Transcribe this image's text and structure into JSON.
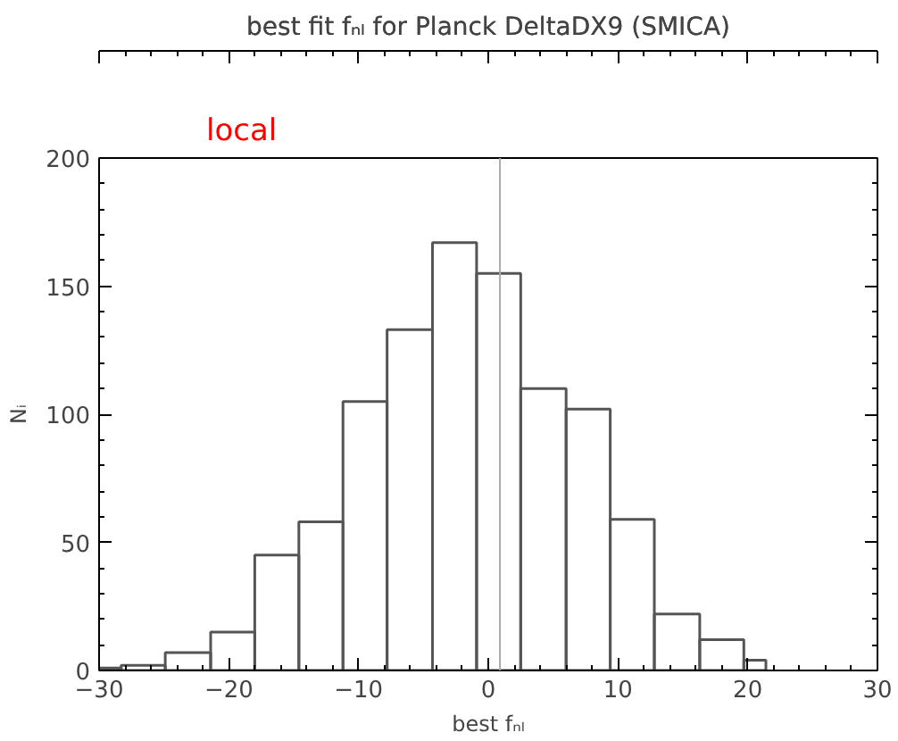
{
  "chart_data": {
    "type": "histogram",
    "title": "best fit fₙₗ for Planck DeltaDX9 (SMICA)",
    "xlabel": "best fₙₗ",
    "ylabel": "Nᵢ",
    "annotations": [
      "local"
    ],
    "bins": [
      -30,
      -28.3,
      -24.9,
      -21.4,
      -18.0,
      -14.6,
      -11.2,
      -7.8,
      -4.3,
      -0.9,
      2.5,
      6.0,
      9.4,
      12.8,
      16.3,
      19.7,
      21.4
    ],
    "values": [
      1,
      2,
      7,
      15,
      45,
      58,
      105,
      133,
      167,
      155,
      110,
      102,
      59,
      22,
      12,
      4
    ],
    "color": "#555555",
    "xlim": [
      -30,
      30
    ],
    "xticks": [
      -30,
      -20,
      -10,
      0,
      10,
      20,
      30
    ],
    "ylim": [
      0,
      200
    ],
    "yticks": [
      0,
      50,
      100,
      150,
      200
    ],
    "ref_lines": [
      {
        "axis": "x",
        "value": 0.9,
        "label": null,
        "color": "#aaaaaa"
      }
    ],
    "grid": false
  }
}
